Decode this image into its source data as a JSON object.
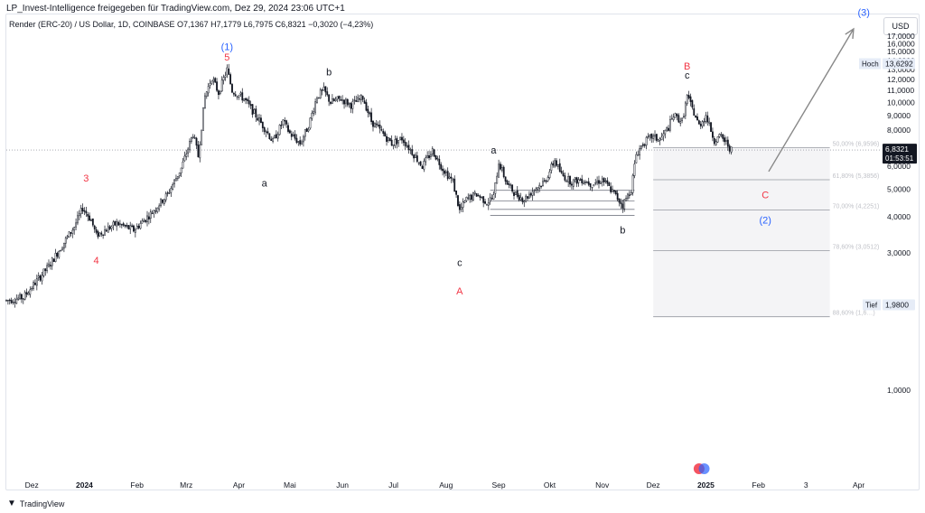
{
  "header": {
    "credit": "LP_Invest-Intelligence freigegeben für TradingView.com, Dez 29, 2024 23:06 UTC+1",
    "symbol_line": "Render (ERC-20) / US Dollar, 1D, COINBASE  O7,1367  H7,1779  L6,7975  C6,8321  −0,3020 (−4,23%)",
    "currency": "USD"
  },
  "footer": {
    "brand": "TradingView"
  },
  "chart_data": {
    "type": "candlestick",
    "symbol": "Render (ERC-20) / US Dollar",
    "interval": "1D",
    "exchange": "COINBASE",
    "ohlc_last": {
      "open": 7.1367,
      "high": 7.1779,
      "low": 6.7975,
      "close": 6.8321,
      "change": -0.302,
      "change_pct": -4.23
    },
    "y_axis": {
      "ticks": [
        "1,0000",
        "2,0000",
        "3,0000",
        "4,0000",
        "5,0000",
        "6,0000",
        "7,0000",
        "8,0000",
        "9,0000",
        "10,0000",
        "11,0000",
        "12,0000",
        "13,0000",
        "14,0000",
        "15,0000",
        "16,0000",
        "17,0000"
      ],
      "tick_values": [
        1,
        2,
        3,
        4,
        5,
        6,
        7,
        8,
        9,
        10,
        11,
        12,
        13,
        14,
        15,
        16,
        17
      ],
      "ylim": [
        0.5,
        18.0
      ],
      "scale": "log",
      "currency": "USD"
    },
    "x_axis": {
      "ticks": [
        "Dez",
        "2024",
        "Feb",
        "Mrz",
        "Apr",
        "Mai",
        "Jun",
        "Jul",
        "Aug",
        "Sep",
        "Okt",
        "Nov",
        "Dez",
        "2025",
        "Feb",
        "3",
        "Apr"
      ],
      "tick_days": [
        0,
        31,
        62,
        91,
        122,
        152,
        183,
        213,
        244,
        275,
        305,
        336,
        366,
        397,
        428,
        456,
        487
      ],
      "bold_ticks": [
        "2024",
        "2025"
      ],
      "xlim_days": [
        -15,
        500
      ]
    },
    "anchors": [
      {
        "d": -15,
        "v": 2.05
      },
      {
        "d": -5,
        "v": 2.1
      },
      {
        "d": 10,
        "v": 2.7
      },
      {
        "d": 25,
        "v": 3.7
      },
      {
        "d": 30,
        "v": 4.3
      },
      {
        "d": 35,
        "v": 3.9
      },
      {
        "d": 38,
        "v": 3.45
      },
      {
        "d": 50,
        "v": 3.8
      },
      {
        "d": 60,
        "v": 3.6
      },
      {
        "d": 70,
        "v": 4.1
      },
      {
        "d": 80,
        "v": 4.8
      },
      {
        "d": 88,
        "v": 5.9
      },
      {
        "d": 95,
        "v": 7.8
      },
      {
        "d": 98,
        "v": 6.5
      },
      {
        "d": 102,
        "v": 10.5
      },
      {
        "d": 106,
        "v": 12.2
      },
      {
        "d": 110,
        "v": 10.8
      },
      {
        "d": 115,
        "v": 13.0
      },
      {
        "d": 118,
        "v": 11.0
      },
      {
        "d": 125,
        "v": 10.3
      },
      {
        "d": 132,
        "v": 9.0
      },
      {
        "d": 138,
        "v": 8.0
      },
      {
        "d": 142,
        "v": 7.3
      },
      {
        "d": 148,
        "v": 8.6
      },
      {
        "d": 152,
        "v": 7.8
      },
      {
        "d": 158,
        "v": 7.2
      },
      {
        "d": 163,
        "v": 8.3
      },
      {
        "d": 168,
        "v": 10.5
      },
      {
        "d": 172,
        "v": 11.0
      },
      {
        "d": 176,
        "v": 10.0
      },
      {
        "d": 182,
        "v": 10.3
      },
      {
        "d": 188,
        "v": 9.8
      },
      {
        "d": 195,
        "v": 10.4
      },
      {
        "d": 200,
        "v": 8.6
      },
      {
        "d": 205,
        "v": 8.0
      },
      {
        "d": 212,
        "v": 7.2
      },
      {
        "d": 218,
        "v": 7.5
      },
      {
        "d": 225,
        "v": 6.6
      },
      {
        "d": 230,
        "v": 6.0
      },
      {
        "d": 236,
        "v": 6.8
      },
      {
        "d": 242,
        "v": 5.9
      },
      {
        "d": 248,
        "v": 5.3
      },
      {
        "d": 252,
        "v": 4.2
      },
      {
        "d": 256,
        "v": 4.6
      },
      {
        "d": 262,
        "v": 4.8
      },
      {
        "d": 268,
        "v": 4.5
      },
      {
        "d": 272,
        "v": 4.7
      },
      {
        "d": 275,
        "v": 6.2
      },
      {
        "d": 280,
        "v": 5.2
      },
      {
        "d": 285,
        "v": 4.8
      },
      {
        "d": 290,
        "v": 4.6
      },
      {
        "d": 296,
        "v": 5.0
      },
      {
        "d": 302,
        "v": 5.3
      },
      {
        "d": 308,
        "v": 6.3
      },
      {
        "d": 312,
        "v": 5.6
      },
      {
        "d": 318,
        "v": 5.3
      },
      {
        "d": 324,
        "v": 5.4
      },
      {
        "d": 330,
        "v": 5.2
      },
      {
        "d": 336,
        "v": 5.4
      },
      {
        "d": 342,
        "v": 4.9
      },
      {
        "d": 348,
        "v": 4.4
      },
      {
        "d": 353,
        "v": 5.0
      },
      {
        "d": 356,
        "v": 6.6
      },
      {
        "d": 360,
        "v": 7.2
      },
      {
        "d": 365,
        "v": 7.6
      },
      {
        "d": 370,
        "v": 7.4
      },
      {
        "d": 375,
        "v": 8.2
      },
      {
        "d": 378,
        "v": 9.0
      },
      {
        "d": 383,
        "v": 8.6
      },
      {
        "d": 386,
        "v": 10.5
      },
      {
        "d": 389,
        "v": 9.5
      },
      {
        "d": 393,
        "v": 8.3
      },
      {
        "d": 397,
        "v": 9.0
      },
      {
        "d": 402,
        "v": 7.4
      },
      {
        "d": 406,
        "v": 7.6
      },
      {
        "d": 410,
        "v": 7.1
      },
      {
        "d": 412,
        "v": 6.83
      }
    ],
    "last_price_label": {
      "value": "6,8321",
      "countdown": "01:53:51",
      "v": 6.8321
    },
    "high_label": {
      "text": "Hoch",
      "value": "13,6292",
      "v": 13.6292
    },
    "low_label": {
      "text": "Tief",
      "value": "1,9800",
      "v": 1.98
    },
    "fib_levels": [
      {
        "label": "50,00% (6,9596)",
        "v": 6.9596
      },
      {
        "label": "61,80% (5,3856)",
        "v": 5.3856
      },
      {
        "label": "70,00% (4,2251)",
        "v": 4.2251
      },
      {
        "label": "78,60% (3,0512)",
        "v": 3.0512
      },
      {
        "label": "88,60% (1,6…)",
        "v": 1.8
      }
    ],
    "box_levels": [
      4.95,
      4.55,
      4.25,
      4.05
    ],
    "wave_labels": [
      {
        "text": "(1)",
        "d": 115,
        "v": 15.2,
        "color": "#2962ff"
      },
      {
        "text": "5",
        "d": 115,
        "v": 14.0,
        "color": "#f23645"
      },
      {
        "text": "3",
        "d": 32,
        "v": 5.3,
        "color": "#f23645"
      },
      {
        "text": "4",
        "d": 38,
        "v": 2.75,
        "color": "#f23645"
      },
      {
        "text": "a",
        "d": 137,
        "v": 5.1,
        "color": "#131722"
      },
      {
        "text": "b",
        "d": 175,
        "v": 12.4,
        "color": "#131722"
      },
      {
        "text": "c",
        "d": 252,
        "v": 2.7,
        "color": "#131722"
      },
      {
        "text": "A",
        "d": 252,
        "v": 2.15,
        "color": "#f23645"
      },
      {
        "text": "a",
        "d": 272,
        "v": 6.65,
        "color": "#131722"
      },
      {
        "text": "b",
        "d": 348,
        "v": 3.5,
        "color": "#131722"
      },
      {
        "text": "B",
        "d": 386,
        "v": 13.0,
        "color": "#f23645"
      },
      {
        "text": "c",
        "d": 386,
        "v": 12.1,
        "color": "#131722"
      },
      {
        "text": "C",
        "d": 432,
        "v": 4.65,
        "color": "#f23645"
      },
      {
        "text": "(2)",
        "d": 432,
        "v": 3.8,
        "color": "#2962ff"
      },
      {
        "text": "(3)",
        "d": 490,
        "v": 20.0,
        "color": "#2962ff"
      }
    ],
    "projection_arrow": {
      "from": {
        "d": 434,
        "v": 5.75
      },
      "to": {
        "d": 484,
        "v": 18.0
      }
    },
    "grid": false
  }
}
